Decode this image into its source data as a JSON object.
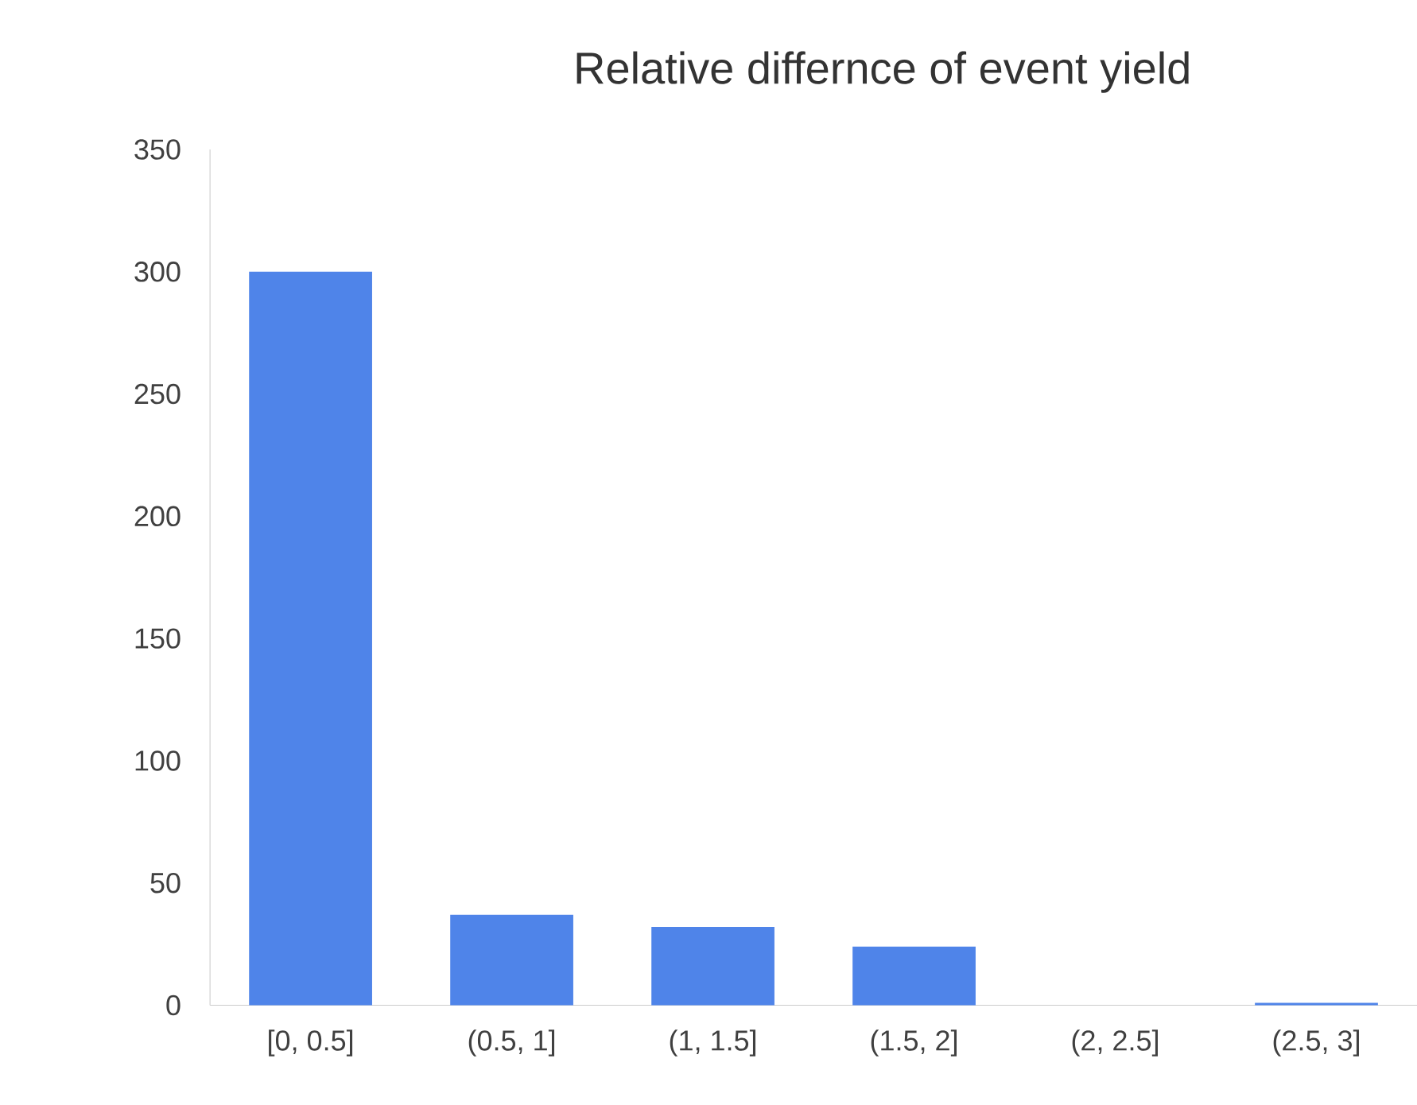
{
  "chart_data": {
    "type": "bar",
    "title": "Relative differnce of event yield",
    "categories": [
      "[0, 0.5]",
      "(0.5, 1]",
      "(1, 1.5]",
      "(1.5, 2]",
      "(2, 2.5]",
      "(2.5, 3]"
    ],
    "values": [
      300,
      37,
      32,
      24,
      0,
      1
    ],
    "color": "#4f84e9",
    "ylim": [
      0,
      350
    ],
    "yticks": [
      0,
      50,
      100,
      150,
      200,
      250,
      300,
      350
    ]
  }
}
